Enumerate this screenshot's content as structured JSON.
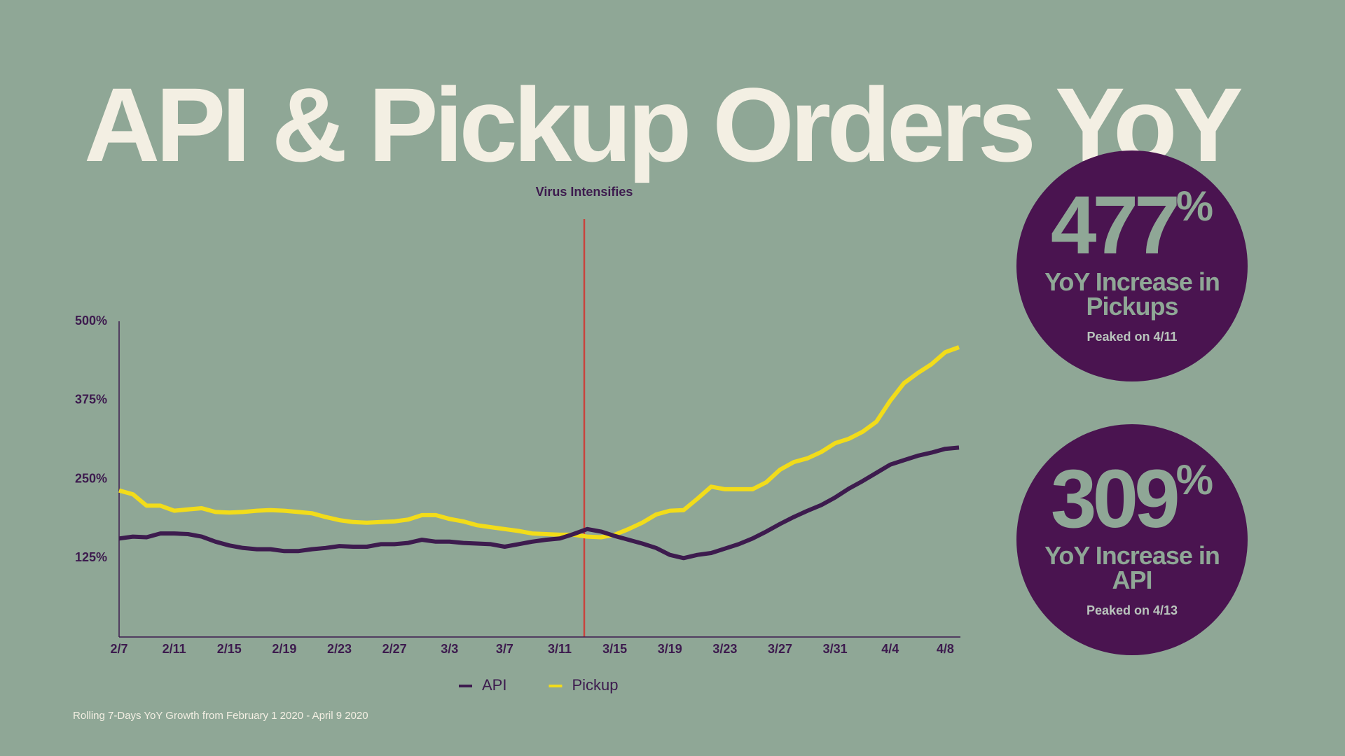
{
  "chart_data": {
    "type": "line",
    "title": "API & Pickup Orders YoY",
    "annotation": "Virus Intensifies",
    "footnote": "Rolling 7-Days YoY Growth from February 1 2020 - April 9 2020",
    "categories": [
      "2/7",
      null,
      null,
      null,
      "2/11",
      null,
      null,
      null,
      "2/15",
      null,
      null,
      null,
      "2/19",
      null,
      null,
      null,
      "2/23",
      null,
      null,
      null,
      "2/27",
      null,
      null,
      null,
      "3/3",
      null,
      null,
      null,
      "3/7",
      null,
      null,
      null,
      "3/11",
      null,
      null,
      null,
      "3/15",
      null,
      null,
      null,
      "3/19",
      null,
      null,
      null,
      "3/23",
      null,
      null,
      null,
      "3/27",
      null,
      null,
      null,
      "3/31",
      null,
      null,
      null,
      "4/4",
      null,
      null,
      null,
      "4/8",
      null
    ],
    "series": [
      {
        "name": "API",
        "color": "#3d1b4e",
        "values": [
          156,
          159,
          158,
          164,
          164,
          163,
          159,
          151,
          145,
          141,
          139,
          139,
          136,
          136,
          139,
          141,
          144,
          143,
          143,
          147,
          147,
          149,
          154,
          151,
          151,
          149,
          148,
          147,
          143,
          147,
          151,
          154,
          156,
          163,
          171,
          167,
          160,
          154,
          148,
          141,
          130,
          125,
          130,
          133,
          140,
          147,
          156,
          167,
          179,
          190,
          200,
          209,
          221,
          235,
          247,
          260,
          273,
          280,
          287,
          292,
          298,
          300
        ]
      },
      {
        "name": "Pickup",
        "color": "#f2dc1a",
        "values": [
          232,
          226,
          208,
          208,
          200,
          202,
          204,
          198,
          197,
          198,
          200,
          201,
          200,
          198,
          196,
          190,
          185,
          182,
          181,
          182,
          183,
          186,
          193,
          193,
          187,
          183,
          177,
          174,
          171,
          168,
          164,
          163,
          162,
          162,
          159,
          158,
          162,
          171,
          181,
          194,
          200,
          201,
          219,
          238,
          234,
          234,
          234,
          245,
          265,
          277,
          283,
          293,
          307,
          314,
          325,
          341,
          374,
          402,
          418,
          432,
          451,
          459
        ]
      }
    ],
    "ylim": [
      0,
      500
    ],
    "yticks": [
      {
        "value": 125,
        "label": "125%"
      },
      {
        "value": 250,
        "label": "250%"
      },
      {
        "value": 375,
        "label": "375%"
      },
      {
        "value": 500,
        "label": "500%"
      }
    ],
    "grid": false,
    "legend": "bottom",
    "stats": [
      {
        "figure": "477",
        "unit": "%",
        "label": "YoY Increase in Pickups",
        "note": "Peaked on 4/11"
      },
      {
        "figure": "309",
        "unit": "%",
        "label": "YoY Increase in API",
        "note": "Peaked on 4/13"
      }
    ]
  }
}
